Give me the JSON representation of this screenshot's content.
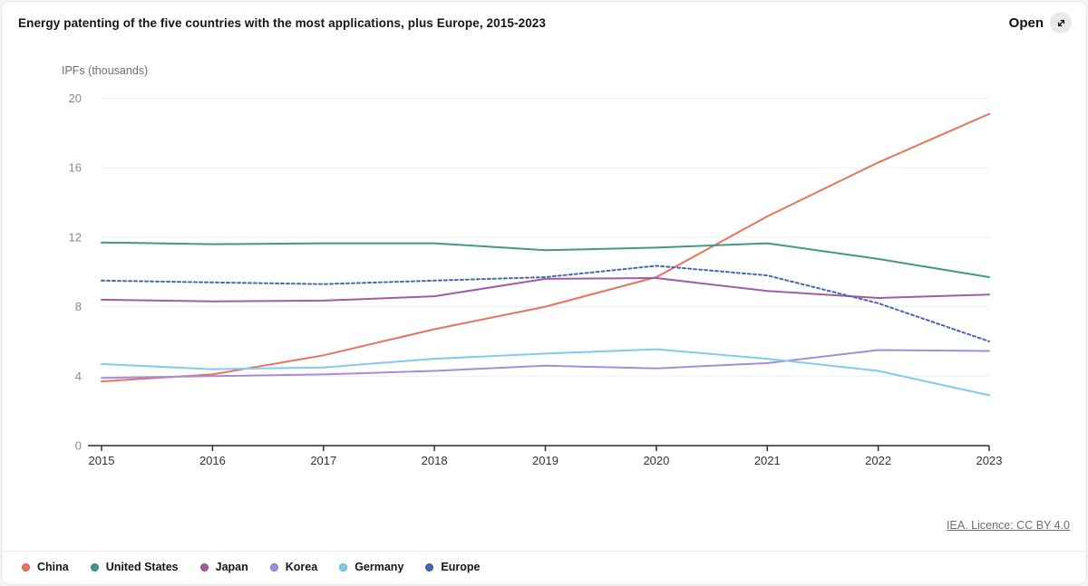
{
  "header": {
    "title": "Energy patenting of the five countries with the most applications, plus Europe, 2015-2023",
    "open_label": "Open",
    "open_icon": "expand-diagonal-arrow-icon"
  },
  "footer": {
    "license_link": "IEA. Licence: CC BY 4.0"
  },
  "colors": {
    "axis": "#2f2f2f",
    "gridline": "#ededed",
    "y_tick_label": "#8a8a8a",
    "x_tick_label": "#333333",
    "title_text": "#161616"
  },
  "chart_data": {
    "type": "line",
    "title": "Energy patenting of the five countries with the most applications, plus Europe, 2015-2023",
    "xlabel": "",
    "ylabel": "IPFs (thousands)",
    "x": [
      2015,
      2016,
      2017,
      2018,
      2019,
      2020,
      2021,
      2022,
      2023
    ],
    "y_ticks": [
      0,
      4,
      8,
      12,
      16,
      20
    ],
    "ylim": [
      0,
      20
    ],
    "grid": true,
    "legend_position": "bottom",
    "series": [
      {
        "name": "China",
        "color": "#e8735c",
        "ring": "#cf5d3f",
        "dash": null,
        "values": [
          3.7,
          4.1,
          5.2,
          6.7,
          8.0,
          9.7,
          13.2,
          16.3,
          19.1
        ]
      },
      {
        "name": "United States",
        "color": "#439889",
        "ring": "#2f7d70",
        "dash": null,
        "values": [
          11.7,
          11.6,
          11.65,
          11.65,
          11.25,
          11.4,
          11.65,
          10.75,
          9.7
        ]
      },
      {
        "name": "Japan",
        "color": "#a25ba6",
        "ring": "#86488a",
        "dash": null,
        "values": [
          8.4,
          8.3,
          8.35,
          8.6,
          9.6,
          9.65,
          8.9,
          8.5,
          8.7
        ]
      },
      {
        "name": "Korea",
        "color": "#a88bdb",
        "ring": "#8a6cc4",
        "dash": null,
        "values": [
          3.9,
          4.0,
          4.1,
          4.3,
          4.6,
          4.45,
          4.75,
          5.5,
          5.45
        ]
      },
      {
        "name": "Germany",
        "color": "#82cbee",
        "ring": "#5aabd6",
        "dash": null,
        "values": [
          4.7,
          4.4,
          4.5,
          5.0,
          5.3,
          5.55,
          5.0,
          4.3,
          2.9
        ]
      },
      {
        "name": "Europe",
        "color": "#4667b5",
        "ring": "#3653a0",
        "dash": "3 3",
        "values": [
          9.5,
          9.4,
          9.3,
          9.5,
          9.7,
          10.35,
          9.8,
          8.2,
          6.0
        ]
      }
    ]
  }
}
